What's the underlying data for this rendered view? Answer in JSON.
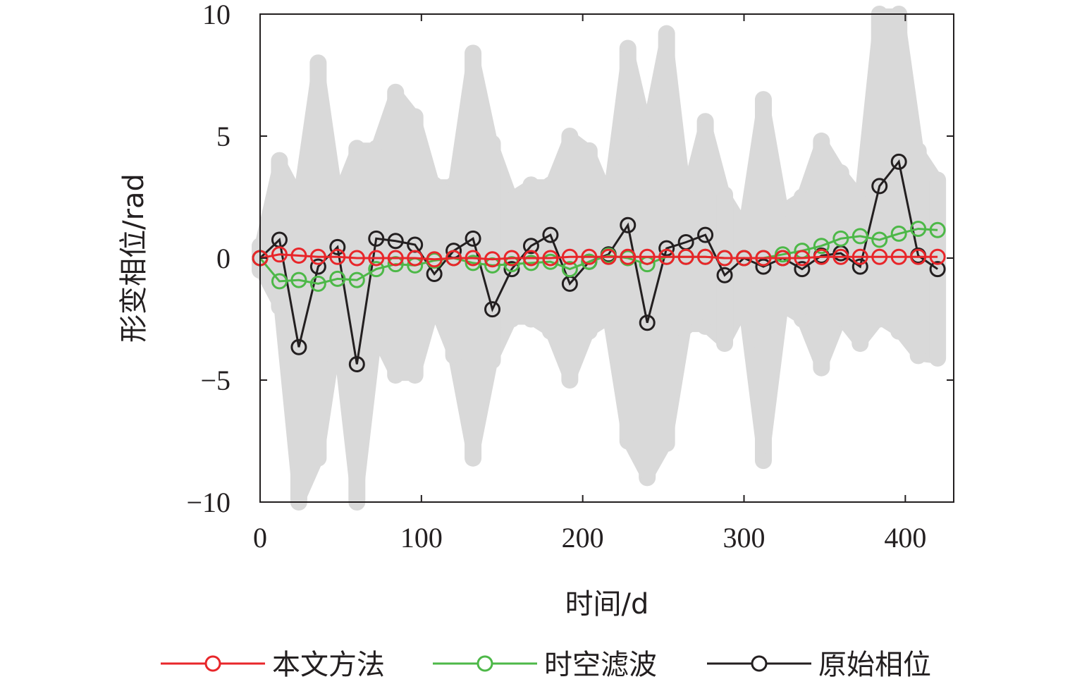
{
  "chart_data": {
    "type": "line",
    "xlabel": "时间/d",
    "ylabel": "形变相位/rad",
    "xlim": [
      0,
      430
    ],
    "ylim": [
      -10,
      10
    ],
    "xticks": [
      0,
      100,
      200,
      300,
      400
    ],
    "yticks": [
      10,
      5,
      0,
      -5,
      -10
    ],
    "x_tick_labels": [
      "0",
      "100",
      "200",
      "300",
      "400"
    ],
    "y_tick_labels": [
      "10",
      "5",
      "0",
      "−5",
      "−10"
    ],
    "grid": false,
    "legend_position": "bottom",
    "x": [
      0,
      12,
      24,
      36,
      48,
      60,
      72,
      84,
      96,
      108,
      120,
      132,
      144,
      156,
      168,
      180,
      192,
      204,
      216,
      228,
      240,
      252,
      264,
      276,
      288,
      300,
      312,
      324,
      336,
      348,
      360,
      372,
      384,
      396,
      408,
      420
    ],
    "background_envelope": {
      "color": "#d9d9d9",
      "upper": [
        0.5,
        4,
        2.5,
        8,
        2.5,
        4.5,
        4.5,
        6.8,
        5.8,
        3,
        3,
        8.4,
        4.7,
        2.5,
        3,
        3,
        5,
        4.4,
        2.5,
        8.6,
        5.2,
        9.2,
        2.5,
        5.6,
        2.6,
        1.3,
        6.5,
        2,
        2.5,
        4.8,
        3.5,
        2.5,
        10,
        10,
        4.4,
        3.2
      ],
      "lower": [
        -0.5,
        -2,
        -10,
        -8.2,
        -3,
        -10,
        -3.2,
        -4.8,
        -4.8,
        -2,
        -4,
        -8.2,
        -4.2,
        -2.5,
        -2.5,
        -3,
        -5,
        -3,
        -2.5,
        -7.5,
        -9,
        -7.6,
        -2.8,
        -2.8,
        -3.5,
        -2,
        -8.3,
        -2,
        -2.5,
        -4.5,
        -2.5,
        -3.5,
        -2.5,
        -3,
        -4,
        -4.1
      ]
    },
    "series": [
      {
        "name": "原始相位",
        "color": "#231f20",
        "values": [
          0,
          0.75,
          -3.65,
          -0.35,
          0.45,
          -4.35,
          0.8,
          0.7,
          0.55,
          -0.65,
          0.3,
          0.8,
          -2.1,
          -0.45,
          0.5,
          0.95,
          -1.05,
          -0.15,
          0.15,
          1.35,
          -2.65,
          0.4,
          0.65,
          0.95,
          -0.7,
          0,
          -0.35,
          0,
          -0.45,
          0.1,
          0.2,
          -0.35,
          2.95,
          3.95,
          0.1,
          -0.45
        ]
      },
      {
        "name": "时空滤波",
        "color": "#4db848",
        "values": [
          0,
          -0.95,
          -0.9,
          -1.05,
          -0.85,
          -0.9,
          -0.45,
          -0.25,
          -0.3,
          -0.1,
          0,
          -0.2,
          -0.3,
          -0.25,
          -0.2,
          -0.15,
          -0.45,
          -0.15,
          0.1,
          0,
          -0.25,
          0.05,
          0.05,
          0.05,
          0,
          0,
          0,
          0.15,
          0.3,
          0.5,
          0.8,
          0.9,
          0.75,
          1,
          1.2,
          1.15
        ]
      },
      {
        "name": "本文方法",
        "color": "#e8262a",
        "values": [
          0,
          0.15,
          0.1,
          0.05,
          0.05,
          0,
          0,
          0,
          0,
          -0.05,
          0,
          0,
          -0.05,
          0,
          0,
          0,
          0.05,
          0.05,
          0.05,
          0.05,
          0.05,
          0.05,
          0.05,
          0.05,
          0,
          0,
          0,
          0,
          0,
          0.05,
          0.05,
          0.05,
          0.05,
          0.05,
          0.05,
          0.05
        ]
      }
    ],
    "legend": [
      {
        "label": "本文方法",
        "color": "#e8262a"
      },
      {
        "label": "时空滤波",
        "color": "#4db848"
      },
      {
        "label": "原始相位",
        "color": "#231f20"
      }
    ]
  }
}
